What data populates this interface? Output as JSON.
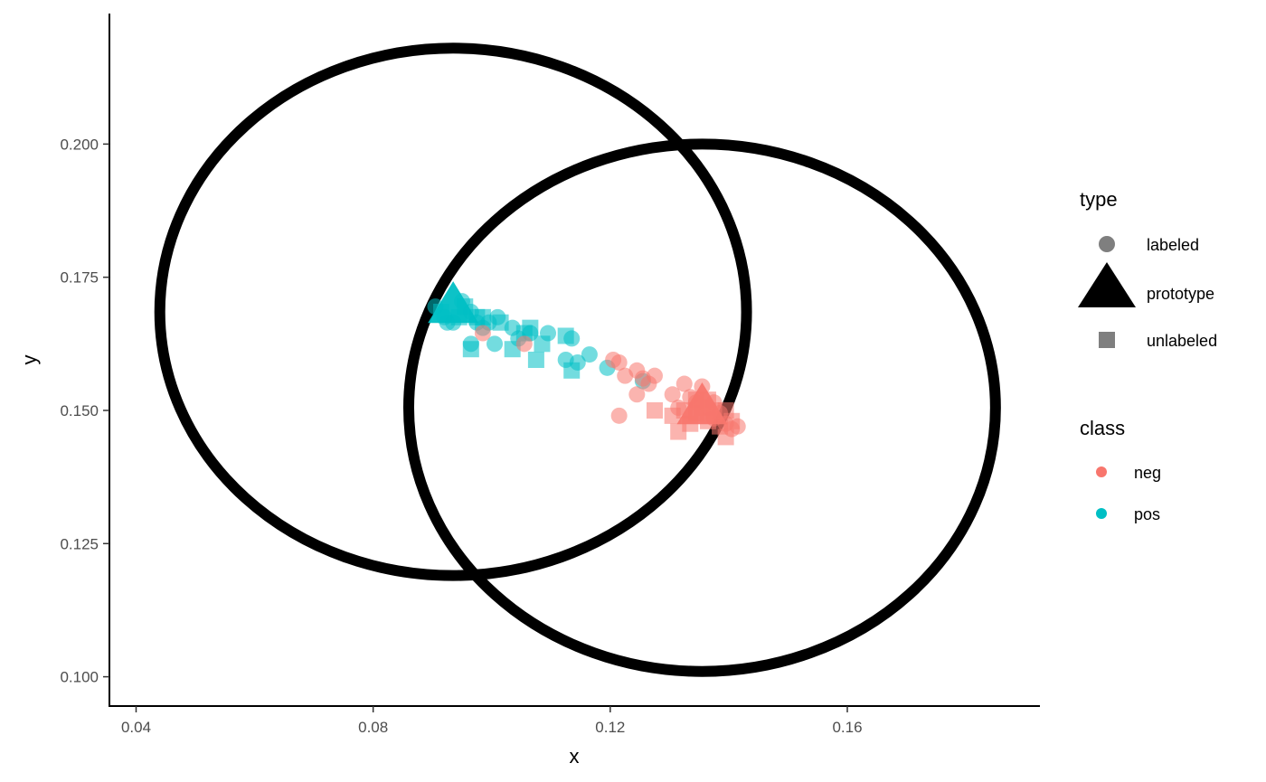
{
  "chart_data": {
    "type": "scatter",
    "xlabel": "x",
    "ylabel": "y",
    "xlim": [
      0.0355,
      0.1925
    ],
    "ylim": [
      0.0945,
      0.2245
    ],
    "x_ticks": [
      0.04,
      0.08,
      0.12,
      0.16
    ],
    "x_tick_labels": [
      "0.04",
      "0.08",
      "0.12",
      "0.16"
    ],
    "y_ticks": [
      0.1,
      0.125,
      0.15,
      0.175,
      0.2
    ],
    "y_tick_labels": [
      "0.100",
      "0.125",
      "0.150",
      "0.175",
      "0.200"
    ],
    "grid": false,
    "legend_placement": "right",
    "colors": {
      "neg": "#F8766D",
      "pos": "#00BFC4",
      "legend_shape": "#7f7f7f",
      "ellipse": "#000000"
    },
    "legends": [
      {
        "title": "type",
        "entries": [
          {
            "label": "labeled",
            "shape": "circle"
          },
          {
            "label": "prototype",
            "shape": "triangle"
          },
          {
            "label": "unlabeled",
            "shape": "square"
          }
        ]
      },
      {
        "title": "class",
        "entries": [
          {
            "label": "neg",
            "color": "#F8766D"
          },
          {
            "label": "pos",
            "color": "#00BFC4"
          }
        ]
      }
    ],
    "ellipses": [
      {
        "cx": 0.0935,
        "cy": 0.1685,
        "rx": 0.0495,
        "ry": 0.0495
      },
      {
        "cx": 0.1355,
        "cy": 0.1505,
        "rx": 0.0495,
        "ry": 0.0495
      }
    ],
    "series": [
      {
        "class": "pos",
        "type": "labeled",
        "points": [
          [
            0.0905,
            0.1695
          ],
          [
            0.092,
            0.1675
          ],
          [
            0.0935,
            0.1665
          ],
          [
            0.095,
            0.1705
          ],
          [
            0.0965,
            0.1685
          ],
          [
            0.0975,
            0.1665
          ],
          [
            0.0985,
            0.1655
          ],
          [
            0.0995,
            0.1665
          ],
          [
            0.101,
            0.1675
          ],
          [
            0.0925,
            0.1665
          ],
          [
            0.0965,
            0.1625
          ],
          [
            0.1005,
            0.1625
          ],
          [
            0.1035,
            0.1655
          ],
          [
            0.1045,
            0.1635
          ],
          [
            0.1065,
            0.1645
          ],
          [
            0.1095,
            0.1645
          ],
          [
            0.1125,
            0.1595
          ],
          [
            0.1135,
            0.1635
          ],
          [
            0.1145,
            0.159
          ],
          [
            0.1165,
            0.1605
          ],
          [
            0.1195,
            0.158
          ],
          [
            0.1255,
            0.1555
          ]
        ]
      },
      {
        "class": "pos",
        "type": "unlabeled",
        "points": [
          [
            0.0915,
            0.1685
          ],
          [
            0.0945,
            0.1675
          ],
          [
            0.0955,
            0.1695
          ],
          [
            0.0975,
            0.1675
          ],
          [
            0.0965,
            0.1615
          ],
          [
            0.0985,
            0.1675
          ],
          [
            0.1015,
            0.1665
          ],
          [
            0.1035,
            0.1615
          ],
          [
            0.1055,
            0.1645
          ],
          [
            0.1065,
            0.1655
          ],
          [
            0.1085,
            0.1625
          ],
          [
            0.1125,
            0.164
          ],
          [
            0.1075,
            0.1595
          ],
          [
            0.1135,
            0.1575
          ]
        ]
      },
      {
        "class": "neg",
        "type": "labeled",
        "points": [
          [
            0.0985,
            0.1645
          ],
          [
            0.1055,
            0.1625
          ],
          [
            0.1205,
            0.1595
          ],
          [
            0.1215,
            0.159
          ],
          [
            0.1225,
            0.1565
          ],
          [
            0.1245,
            0.1575
          ],
          [
            0.1255,
            0.156
          ],
          [
            0.1265,
            0.155
          ],
          [
            0.1275,
            0.1565
          ],
          [
            0.1245,
            0.153
          ],
          [
            0.1215,
            0.149
          ],
          [
            0.1305,
            0.153
          ],
          [
            0.1315,
            0.1505
          ],
          [
            0.1325,
            0.155
          ],
          [
            0.1335,
            0.1525
          ],
          [
            0.1345,
            0.1515
          ],
          [
            0.1355,
            0.1545
          ],
          [
            0.1365,
            0.1505
          ],
          [
            0.1375,
            0.1485
          ],
          [
            0.1385,
            0.1495
          ],
          [
            0.1395,
            0.1475
          ],
          [
            0.1405,
            0.1465
          ],
          [
            0.1415,
            0.147
          ],
          [
            0.1375,
            0.1515
          ]
        ]
      },
      {
        "class": "neg",
        "type": "unlabeled",
        "points": [
          [
            0.1275,
            0.15
          ],
          [
            0.1305,
            0.149
          ],
          [
            0.1315,
            0.146
          ],
          [
            0.1335,
            0.1475
          ],
          [
            0.1345,
            0.1495
          ],
          [
            0.1355,
            0.1505
          ],
          [
            0.1365,
            0.148
          ],
          [
            0.1385,
            0.147
          ],
          [
            0.1395,
            0.145
          ],
          [
            0.1405,
            0.148
          ],
          [
            0.1375,
            0.15
          ],
          [
            0.1345,
            0.152
          ],
          [
            0.1365,
            0.152
          ],
          [
            0.1395,
            0.15
          ],
          [
            0.1325,
            0.15
          ]
        ]
      },
      {
        "class": "pos",
        "type": "prototype",
        "points": [
          [
            0.0935,
            0.1695
          ]
        ]
      },
      {
        "class": "neg",
        "type": "prototype",
        "points": [
          [
            0.1355,
            0.1505
          ]
        ]
      }
    ]
  }
}
